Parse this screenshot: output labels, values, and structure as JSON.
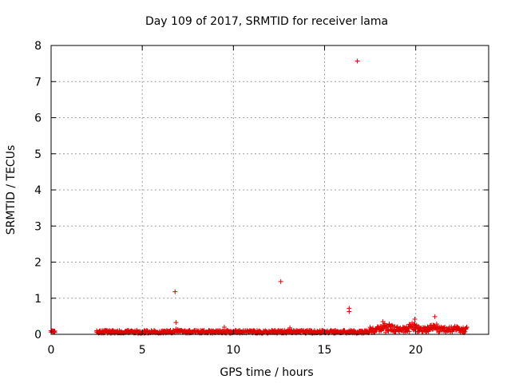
{
  "chart_data": {
    "type": "scatter",
    "title": "Day 109 of 2017, SRMTID for receiver lama",
    "xlabel": "GPS time / hours",
    "ylabel": "SRMTID / TECUs",
    "xlim": [
      0,
      24
    ],
    "ylim": [
      0,
      8
    ],
    "xticks": [
      0,
      5,
      10,
      15,
      20
    ],
    "yticks": [
      0,
      1,
      2,
      3,
      4,
      5,
      6,
      7,
      8
    ],
    "xtick_labels": [
      "0",
      "5",
      "10",
      "15",
      "20"
    ],
    "ytick_labels": [
      "0",
      "1",
      "2",
      "3",
      "4",
      "5",
      "6",
      "7",
      "8"
    ],
    "grid": true,
    "marker": "+",
    "color": "#e00000",
    "outliers": [
      {
        "x": 6.8,
        "y": 1.18
      },
      {
        "x": 6.85,
        "y": 0.33
      },
      {
        "x": 12.6,
        "y": 1.46
      },
      {
        "x": 16.35,
        "y": 0.72
      },
      {
        "x": 16.35,
        "y": 0.63
      },
      {
        "x": 16.8,
        "y": 7.57
      },
      {
        "x": 9.5,
        "y": 0.2
      },
      {
        "x": 13.1,
        "y": 0.18
      },
      {
        "x": 18.2,
        "y": 0.35
      },
      {
        "x": 19.95,
        "y": 0.42
      },
      {
        "x": 21.05,
        "y": 0.49
      }
    ],
    "baseline_segments": [
      {
        "x_start": 0.0,
        "x_end": 0.2,
        "level": 0.07,
        "spread": 0.03
      },
      {
        "x_start": 2.5,
        "x_end": 17.5,
        "level": 0.07,
        "spread": 0.04
      },
      {
        "x_start": 17.5,
        "x_end": 22.8,
        "level": 0.12,
        "spread": 0.08
      }
    ],
    "bumps": [
      {
        "center": 7.0,
        "height": 0.06,
        "width": 0.25
      },
      {
        "center": 18.4,
        "height": 0.12,
        "width": 0.4
      },
      {
        "center": 19.9,
        "height": 0.18,
        "width": 0.35
      },
      {
        "center": 21.0,
        "height": 0.17,
        "width": 0.3
      },
      {
        "center": 22.2,
        "height": 0.06,
        "width": 0.3
      }
    ]
  }
}
